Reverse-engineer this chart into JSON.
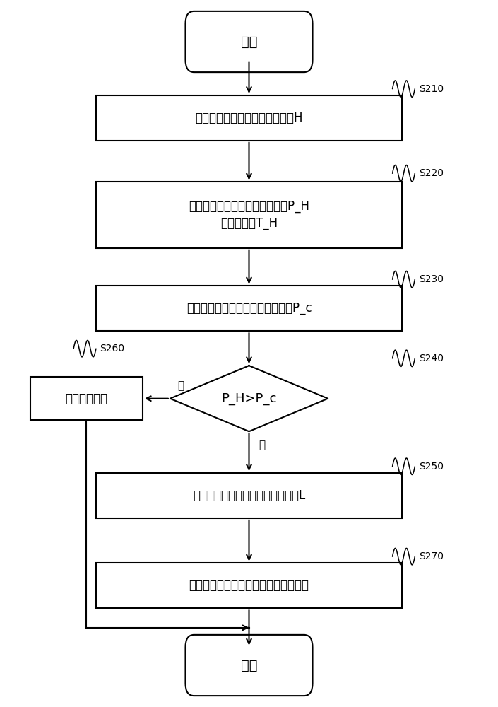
{
  "bg_color": "#ffffff",
  "line_color": "#000000",
  "text_color": "#000000",
  "fig_width": 7.05,
  "fig_height": 10.0,
  "start_text": "开始",
  "end_text": "结束",
  "s210_text": "测量煤层气井筒中拟动液面高度H",
  "s220_text": "计算得到拟动液面处的真实压力P_H\n和真实温度T_H",
  "s230_text": "计算产生泡沫段的临界动液面压力P_c",
  "s240_text": "P_H>P_c",
  "s260_text": "井内无泡沫段",
  "s250_text": "井内有泡沫段，计算泡沫段的高度L",
  "s270_text": "降低泡沫段的高度或者完全消除泡沫段",
  "yes_text": "是",
  "no_text": "否",
  "lw": 1.5
}
